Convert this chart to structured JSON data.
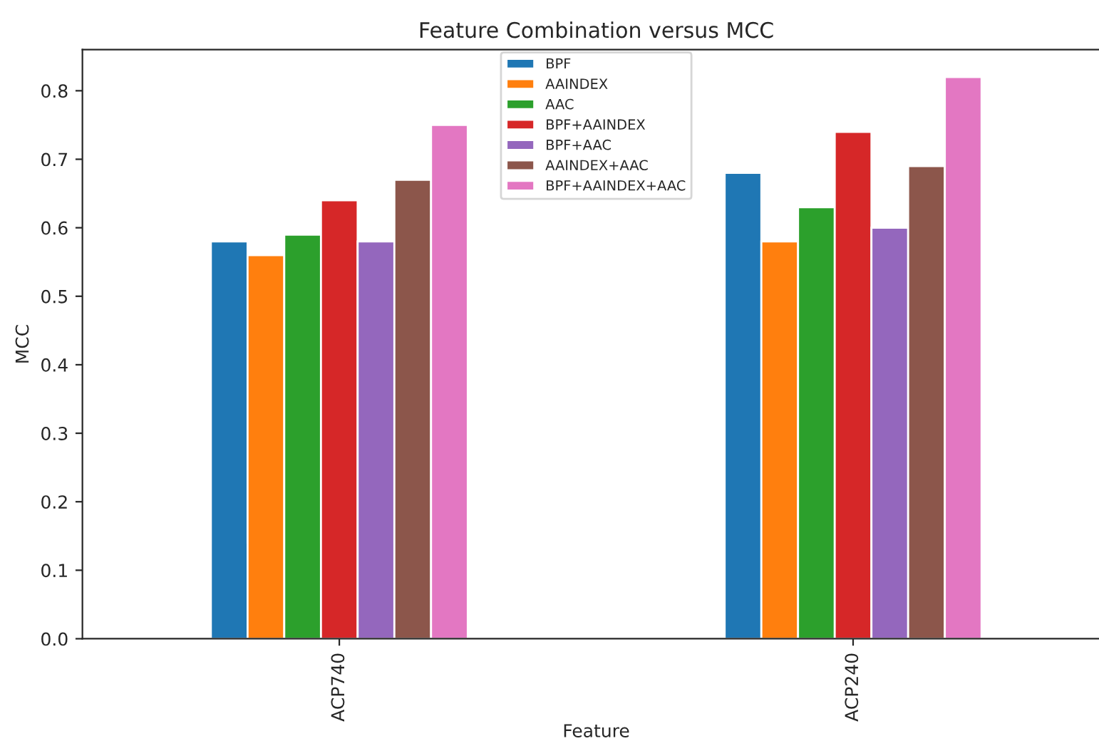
{
  "chart_data": {
    "type": "bar",
    "title": "Feature Combination versus MCC",
    "xlabel": "Feature",
    "ylabel": "MCC",
    "categories": [
      "ACP740",
      "ACP240"
    ],
    "series": [
      {
        "name": "BPF",
        "color": "#1f77b4",
        "values": [
          0.58,
          0.68
        ]
      },
      {
        "name": "AAINDEX",
        "color": "#ff7f0e",
        "values": [
          0.56,
          0.58
        ]
      },
      {
        "name": "AAC",
        "color": "#2ca02c",
        "values": [
          0.59,
          0.63
        ]
      },
      {
        "name": "BPF+AAINDEX",
        "color": "#d62728",
        "values": [
          0.64,
          0.74
        ]
      },
      {
        "name": "BPF+AAC",
        "color": "#9467bd",
        "values": [
          0.58,
          0.6
        ]
      },
      {
        "name": "AAINDEX+AAC",
        "color": "#8c564b",
        "values": [
          0.67,
          0.69
        ]
      },
      {
        "name": "BPF+AAINDEX+AAC",
        "color": "#e377c2",
        "values": [
          0.75,
          0.82
        ]
      }
    ],
    "ylim": [
      0,
      0.86
    ],
    "yticks": [
      {
        "value": 0,
        "label": "0.0"
      },
      0.1,
      0.2,
      0.3,
      0.4,
      0.5,
      0.6,
      0.7,
      0.8
    ],
    "grid": false,
    "legend": "top"
  }
}
